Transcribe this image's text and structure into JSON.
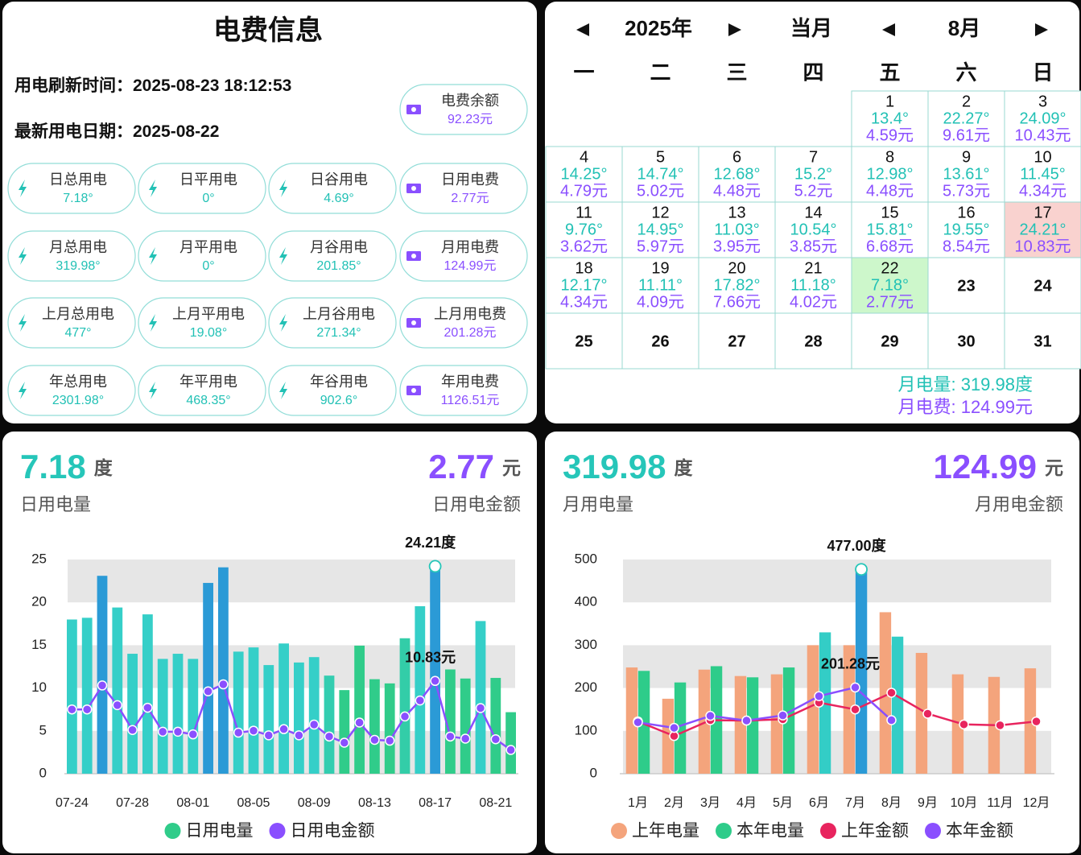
{
  "info": {
    "title": "电费信息",
    "refresh_label": "用电刷新时间：",
    "refresh_time": "2025-08-23 18:12:53",
    "date_label": "最新用电日期：",
    "date": "2025-08-22",
    "balance": {
      "label": "电费余额",
      "value": "92.23元"
    },
    "cards": [
      [
        {
          "label": "日总用电",
          "value": "7.18°"
        },
        {
          "label": "日平用电",
          "value": "0°"
        },
        {
          "label": "日谷用电",
          "value": "4.69°"
        },
        {
          "label": "日用电费",
          "value": "2.77元"
        }
      ],
      [
        {
          "label": "月总用电",
          "value": "319.98°"
        },
        {
          "label": "月平用电",
          "value": "0°"
        },
        {
          "label": "月谷用电",
          "value": "201.85°"
        },
        {
          "label": "月用电费",
          "value": "124.99元"
        }
      ],
      [
        {
          "label": "上月总用电",
          "value": "477°"
        },
        {
          "label": "上月平用电",
          "value": "19.08°"
        },
        {
          "label": "上月谷用电",
          "value": "271.34°"
        },
        {
          "label": "上月用电费",
          "value": "201.28元"
        }
      ],
      [
        {
          "label": "年总用电",
          "value": "2301.98°"
        },
        {
          "label": "年平用电",
          "value": "468.35°"
        },
        {
          "label": "年谷用电",
          "value": "902.6°"
        },
        {
          "label": "年用电费",
          "value": "1126.51元"
        }
      ]
    ]
  },
  "calendar": {
    "year": "2025年",
    "mode": "当月",
    "month": "8月",
    "weekdays": [
      "一",
      "二",
      "三",
      "四",
      "五",
      "六",
      "日"
    ],
    "weeks": [
      [
        null,
        null,
        null,
        null,
        {
          "day": 1,
          "kwh": "13.4°",
          "cost": "4.59元"
        },
        {
          "day": 2,
          "kwh": "22.27°",
          "cost": "9.61元"
        },
        {
          "day": 3,
          "kwh": "24.09°",
          "cost": "10.43元"
        }
      ],
      [
        {
          "day": 4,
          "kwh": "14.25°",
          "cost": "4.79元"
        },
        {
          "day": 5,
          "kwh": "14.74°",
          "cost": "5.02元"
        },
        {
          "day": 6,
          "kwh": "12.68°",
          "cost": "4.48元"
        },
        {
          "day": 7,
          "kwh": "15.2°",
          "cost": "5.2元"
        },
        {
          "day": 8,
          "kwh": "12.98°",
          "cost": "4.48元"
        },
        {
          "day": 9,
          "kwh": "13.61°",
          "cost": "5.73元"
        },
        {
          "day": 10,
          "kwh": "11.45°",
          "cost": "4.34元"
        }
      ],
      [
        {
          "day": 11,
          "kwh": "9.76°",
          "cost": "3.62元"
        },
        {
          "day": 12,
          "kwh": "14.95°",
          "cost": "5.97元"
        },
        {
          "day": 13,
          "kwh": "11.03°",
          "cost": "3.95元"
        },
        {
          "day": 14,
          "kwh": "10.54°",
          "cost": "3.85元"
        },
        {
          "day": 15,
          "kwh": "15.81°",
          "cost": "6.68元"
        },
        {
          "day": 16,
          "kwh": "19.55°",
          "cost": "8.54元"
        },
        {
          "day": 17,
          "kwh": "24.21°",
          "cost": "10.83元",
          "bg": "#f9d2cf"
        }
      ],
      [
        {
          "day": 18,
          "kwh": "12.17°",
          "cost": "4.34元"
        },
        {
          "day": 19,
          "kwh": "11.11°",
          "cost": "4.09元"
        },
        {
          "day": 20,
          "kwh": "17.82°",
          "cost": "7.66元"
        },
        {
          "day": 21,
          "kwh": "11.18°",
          "cost": "4.02元"
        },
        {
          "day": 22,
          "kwh": "7.18°",
          "cost": "2.77元",
          "bg": "#cdf7cb"
        },
        {
          "day": 23
        },
        {
          "day": 24
        }
      ],
      [
        {
          "day": 25
        },
        {
          "day": 26
        },
        {
          "day": 27
        },
        {
          "day": 28
        },
        {
          "day": 29
        },
        {
          "day": 30
        },
        {
          "day": 31
        }
      ]
    ],
    "month_kwh": "月电量: 319.98度",
    "month_cost": "月电费: 124.99元"
  },
  "chart_data": [
    {
      "type": "combo",
      "headline": [
        {
          "value": 7.18,
          "unit": "度",
          "label": "日用电量",
          "color": "#26c6b9"
        },
        {
          "value": 2.77,
          "unit": "元",
          "label": "日用电金额",
          "color": "#8a4fff"
        }
      ],
      "categories": [
        "07-24",
        null,
        null,
        null,
        "07-28",
        null,
        null,
        null,
        "08-01",
        null,
        null,
        null,
        "08-05",
        null,
        null,
        null,
        "08-09",
        null,
        null,
        null,
        "08-13",
        null,
        null,
        null,
        "08-17",
        null,
        null,
        null,
        "08-21",
        null
      ],
      "series": [
        {
          "name": "日用电量",
          "kind": "bar",
          "color": "#30cc8a",
          "colors": [
            "#35cfc8",
            "#35cfc8",
            "#2b9ad6",
            "#35cfc8",
            "#35cfc8",
            "#35cfc8",
            "#35cfc8",
            "#35cfc8",
            "#35cfc8",
            "#2b9ad6",
            "#2b9ad6",
            "#35cfc8",
            "#35cfc8",
            "#35cfc8",
            "#35cfc8",
            "#35cfc8",
            "#35cfc8",
            "#33cdb0",
            "#30cc8a",
            "#30cc8a",
            "#30cc8a",
            "#30cc8a",
            "#33cda8",
            "#35cfc8",
            "#2b9ad6",
            "#30cc8a",
            "#30cc8a",
            "#35cfc8",
            "#30cc8a",
            "#30cc8a"
          ],
          "values": [
            18,
            18.2,
            23.1,
            19.4,
            14,
            18.6,
            13.4,
            14,
            13.4,
            22.27,
            24.09,
            14.25,
            14.74,
            12.68,
            15.2,
            12.98,
            13.61,
            11.45,
            9.76,
            14.95,
            11.03,
            10.54,
            15.81,
            19.55,
            24.21,
            12.17,
            11.11,
            17.82,
            11.18,
            7.18
          ],
          "value_labels": [
            null,
            null,
            null,
            null,
            null,
            null,
            null,
            null,
            null,
            null,
            null,
            null,
            null,
            null,
            null,
            null,
            null,
            null,
            null,
            null,
            null,
            null,
            null,
            null,
            "24.21度",
            null,
            null,
            null,
            null,
            null
          ]
        },
        {
          "name": "日用电金额",
          "kind": "line",
          "color": "#8a4fff",
          "values": [
            7.5,
            7.5,
            10.3,
            8,
            5.1,
            7.7,
            4.9,
            4.9,
            4.59,
            9.61,
            10.43,
            4.79,
            5.02,
            4.48,
            5.2,
            4.48,
            5.73,
            4.34,
            3.62,
            5.97,
            3.95,
            3.85,
            6.68,
            8.54,
            10.83,
            4.34,
            4.09,
            7.66,
            4.02,
            2.77
          ],
          "value_labels": [
            null,
            null,
            null,
            null,
            null,
            null,
            null,
            null,
            null,
            null,
            null,
            null,
            null,
            null,
            null,
            null,
            null,
            null,
            null,
            null,
            null,
            null,
            null,
            null,
            "10.83元",
            null,
            null,
            null,
            null,
            null
          ]
        }
      ],
      "ylim": [
        0,
        25
      ],
      "yticks": [
        0,
        5,
        10,
        15,
        20,
        25
      ],
      "grid": "bands",
      "legend": "bottom"
    },
    {
      "type": "combo",
      "headline": [
        {
          "value": 319.98,
          "unit": "度",
          "label": "月用电量",
          "color": "#26c6b9"
        },
        {
          "value": 124.99,
          "unit": "元",
          "label": "月用电金额",
          "color": "#8a4fff"
        }
      ],
      "categories": [
        "1月",
        "2月",
        "3月",
        "4月",
        "5月",
        "6月",
        "7月",
        "8月",
        "9月",
        "10月",
        "11月",
        "12月"
      ],
      "series": [
        {
          "name": "上年电量",
          "kind": "bar",
          "color": "#f4a47c",
          "values": [
            248,
            175,
            243,
            228,
            232,
            300,
            300,
            377,
            282,
            232,
            226,
            246
          ]
        },
        {
          "name": "本年电量",
          "kind": "bar",
          "color": "#2ecc8a",
          "colors": [
            "#2ecc8a",
            "#2ecc8a",
            "#2ecc8a",
            "#2ecc8a",
            "#2ecc8a",
            "#33cdc6",
            "#2b9ad6",
            "#33cdc6",
            null,
            null,
            null,
            null
          ],
          "values": [
            240,
            213,
            251,
            225,
            248,
            330,
            477,
            319.98,
            null,
            null,
            null,
            null
          ],
          "value_labels": [
            null,
            null,
            null,
            null,
            null,
            null,
            "477.00度",
            null,
            null,
            null,
            null,
            null
          ]
        },
        {
          "name": "上年金额",
          "kind": "line",
          "color": "#e8245e",
          "values": [
            122,
            88,
            125,
            124,
            127,
            166,
            150,
            189,
            140,
            115,
            113,
            122
          ]
        },
        {
          "name": "本年金额",
          "kind": "line",
          "color": "#8a4fff",
          "values": [
            120,
            107,
            135,
            124,
            136,
            181,
            201.28,
            124.99,
            null,
            null,
            null,
            null
          ],
          "value_labels": [
            null,
            null,
            null,
            null,
            null,
            null,
            "201.28元",
            null,
            null,
            null,
            null,
            null
          ]
        }
      ],
      "ylim": [
        0,
        500
      ],
      "yticks": [
        0,
        100,
        200,
        300,
        400,
        500
      ],
      "grid": "bands",
      "legend": "bottom"
    }
  ]
}
